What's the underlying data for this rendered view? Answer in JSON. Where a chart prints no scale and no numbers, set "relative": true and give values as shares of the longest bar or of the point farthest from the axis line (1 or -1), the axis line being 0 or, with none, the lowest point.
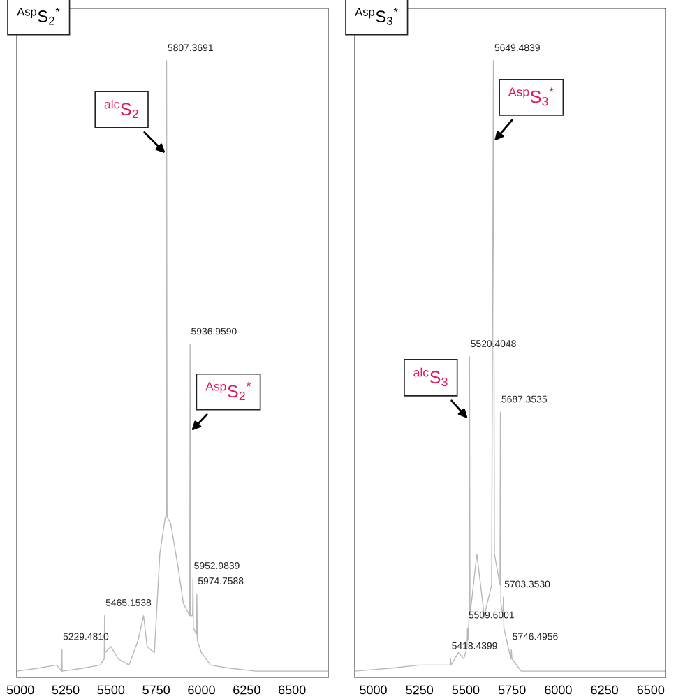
{
  "chart_data": [
    {
      "type": "line",
      "title": "$^{Asp}$S$_{2}$$^{*}$",
      "relative": true,
      "tick_labels": "x",
      "xlim": [
        4980,
        6700
      ],
      "xticks": [
        5000,
        5250,
        5500,
        5750,
        6000,
        6250,
        6500
      ],
      "annotations": [
        {
          "text": "$^{alc}$S$_{2}$",
          "x": 5800,
          "y": 0.85
        },
        {
          "text": "$^{Asp}$S$_{2}$$^{*}$",
          "x": 5945,
          "y": 0.4
        },
        {
          "text": "5229.4810",
          "x": 5229.481,
          "y": 0.045
        },
        {
          "text": "5465.1538",
          "x": 5465.1538,
          "y": 0.1
        },
        {
          "text": "5807.3691",
          "x": 5807.3691,
          "y": 1.0
        },
        {
          "text": "5936.9590",
          "x": 5936.959,
          "y": 0.54
        },
        {
          "text": "5952.9839",
          "x": 5952.9839,
          "y": 0.16
        },
        {
          "text": "5974.7588",
          "x": 5974.7588,
          "y": 0.135
        }
      ],
      "series": [
        {
          "color": "#b8b8b8",
          "x": [
            4980,
            5100,
            5200,
            5228,
            5229.481,
            5231,
            5350,
            5440,
            5463,
            5465.1538,
            5467,
            5500,
            5540,
            5600,
            5650,
            5680,
            5700,
            5740,
            5770,
            5800,
            5805,
            5807.3691,
            5810,
            5830,
            5870,
            5900,
            5935,
            5936.959,
            5939,
            5951,
            5952.9839,
            5955,
            5973,
            5974.7588,
            5977,
            6000,
            6050,
            6150,
            6300,
            6500,
            6700
          ],
          "values": [
            0.01,
            0.015,
            0.02,
            0.01,
            0.045,
            0.01,
            0.015,
            0.02,
            0.03,
            0.1,
            0.04,
            0.05,
            0.03,
            0.02,
            0.06,
            0.1,
            0.05,
            0.04,
            0.2,
            0.26,
            0.26,
            1.0,
            0.26,
            0.25,
            0.18,
            0.12,
            0.1,
            0.54,
            0.1,
            0.1,
            0.16,
            0.08,
            0.07,
            0.135,
            0.06,
            0.04,
            0.02,
            0.015,
            0.01,
            0.01,
            0.01
          ]
        }
      ]
    },
    {
      "type": "line",
      "title": "$^{Asp}$S$_{3}$$^{*}$",
      "relative": true,
      "tick_labels": "x",
      "xlim": [
        4900,
        6580
      ],
      "xticks": [
        5000,
        5250,
        5500,
        5750,
        6000,
        6250,
        6500
      ],
      "annotations": [
        {
          "text": "$^{Asp}$S$_{3}$$^{*}$",
          "x": 5655,
          "y": 0.87
        },
        {
          "text": "$^{alc}$S$_{3}$",
          "x": 5510,
          "y": 0.42
        },
        {
          "text": "5418.4399",
          "x": 5418.4399,
          "y": 0.03
        },
        {
          "text": "5509.6001",
          "x": 5509.6001,
          "y": 0.08
        },
        {
          "text": "5520.4048",
          "x": 5520.4048,
          "y": 0.52
        },
        {
          "text": "5649.4839",
          "x": 5649.4839,
          "y": 1.0
        },
        {
          "text": "5687.3535",
          "x": 5687.3535,
          "y": 0.43
        },
        {
          "text": "5703.3530",
          "x": 5703.353,
          "y": 0.13
        },
        {
          "text": "5746.4956",
          "x": 5746.4956,
          "y": 0.045
        }
      ],
      "series": [
        {
          "color": "#b8b8b8",
          "x": [
            4900,
            5100,
            5250,
            5350,
            5416,
            5418.4399,
            5421,
            5460,
            5490,
            5507,
            5509.6001,
            5512,
            5518,
            5520.4048,
            5523,
            5560,
            5600,
            5640,
            5649.4839,
            5655,
            5685,
            5687.3535,
            5690,
            5701,
            5703.353,
            5706,
            5744,
            5746.4956,
            5750,
            5800,
            6000,
            6580
          ],
          "values": [
            0.01,
            0.015,
            0.02,
            0.02,
            0.02,
            0.03,
            0.02,
            0.04,
            0.03,
            0.05,
            0.08,
            0.06,
            0.1,
            0.52,
            0.1,
            0.2,
            0.1,
            0.15,
            1.0,
            0.2,
            0.15,
            0.43,
            0.12,
            0.1,
            0.13,
            0.08,
            0.03,
            0.045,
            0.03,
            0.01,
            0.01,
            0.01
          ]
        }
      ]
    }
  ]
}
